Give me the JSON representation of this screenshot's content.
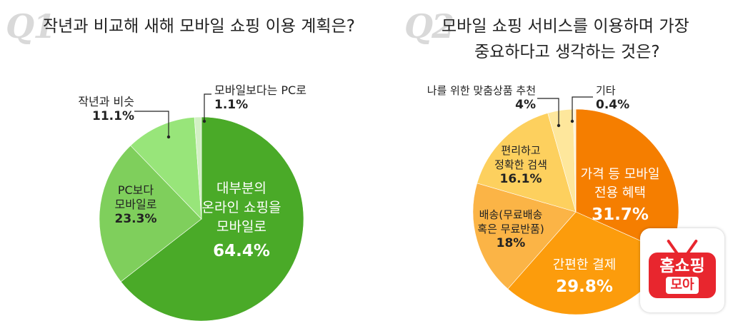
{
  "q1": {
    "badge": "Q1",
    "title": "작년과 비교해 새해 모바일 쇼핑 이용 계획은?"
  },
  "q2": {
    "badge": "Q2",
    "title_line1": "모바일 쇼핑 서비스를 이용하며 가장",
    "title_line2": "중요하다고 생각하는 것은?"
  },
  "logo": {
    "line1": "홈쇼핑",
    "line2": "모아",
    "color": "#e8262e"
  },
  "chart_data": [
    {
      "type": "pie",
      "title": "작년과 비교해 새해 모바일 쇼핑 이용 계획은?",
      "slices": [
        {
          "label": [
            "대부분의",
            "온라인 쇼핑을",
            "모바일로"
          ],
          "value": 64.4,
          "value_label": "64.4%",
          "color": "#4aaa28"
        },
        {
          "label": [
            "PC보다",
            "모바일로"
          ],
          "value": 23.3,
          "value_label": "23.3%",
          "color": "#7fcf5c"
        },
        {
          "label": [
            "작년과 비슷"
          ],
          "value": 11.1,
          "value_label": "11.1%",
          "color": "#98e57a"
        },
        {
          "label": [
            "모바일보다는 PC로"
          ],
          "value": 1.1,
          "value_label": "1.1%",
          "color": "#d2f0c4"
        }
      ]
    },
    {
      "type": "pie",
      "title": "모바일 쇼핑 서비스를 이용하며 가장 중요하다고 생각하는 것은?",
      "slices": [
        {
          "label": [
            "가격 등 모바일",
            "전용 혜택"
          ],
          "value": 31.7,
          "value_label": "31.7%",
          "color": "#f57e00"
        },
        {
          "label": [
            "간편한 결제"
          ],
          "value": 29.8,
          "value_label": "29.8%",
          "color": "#fc9c0c"
        },
        {
          "label": [
            "배송(무료배송",
            "혹은 무료반품)"
          ],
          "value": 18,
          "value_label": "18%",
          "color": "#fbb446"
        },
        {
          "label": [
            "편리하고",
            "정확한 검색"
          ],
          "value": 16.1,
          "value_label": "16.1%",
          "color": "#fdd05e"
        },
        {
          "label": [
            "나를 위한 맞춤상품 추천"
          ],
          "value": 4,
          "value_label": "4%",
          "color": "#fee79c"
        },
        {
          "label": [
            "기타"
          ],
          "value": 0.4,
          "value_label": "0.4%",
          "color": "#fff3d6"
        }
      ]
    }
  ]
}
